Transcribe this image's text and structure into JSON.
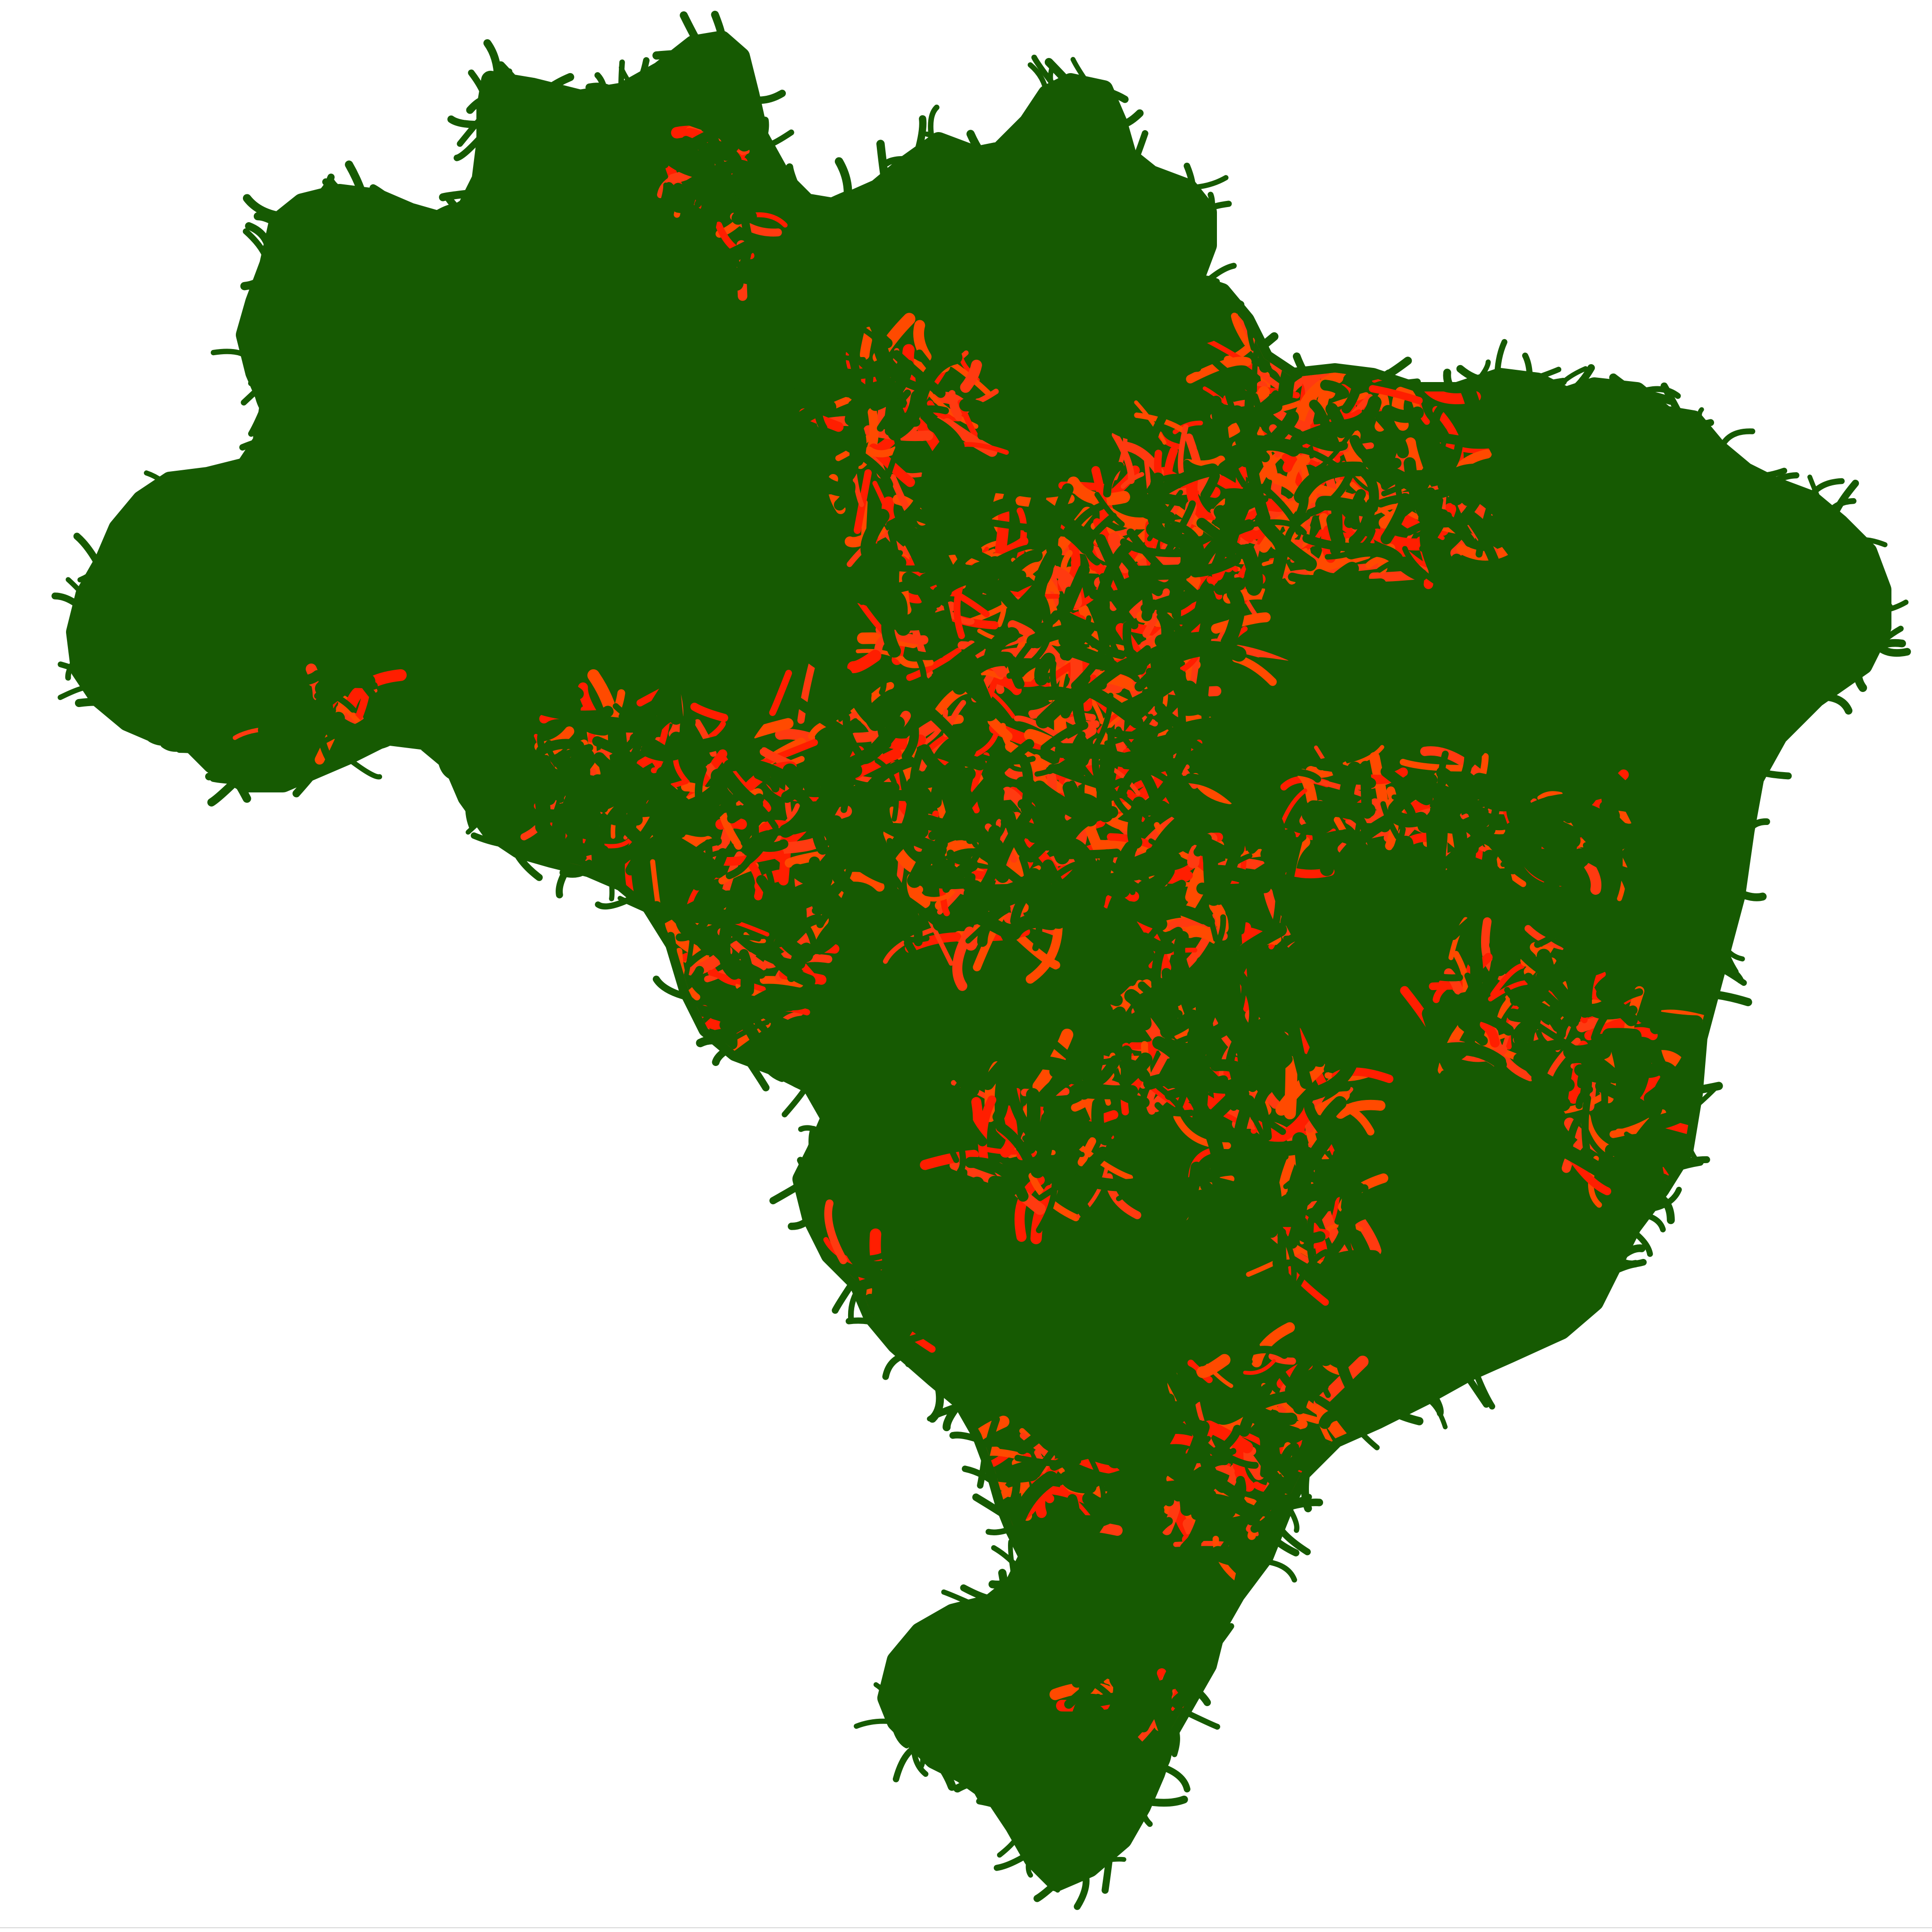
{
  "map": {
    "region": "Brazil",
    "background_color": "#ffffff",
    "land_color": "#165a02",
    "hotspot_colors": [
      "#ff1e00",
      "#ff4a00",
      "#ff3a10"
    ],
    "edge_line_color": "#d8d8d8"
  }
}
